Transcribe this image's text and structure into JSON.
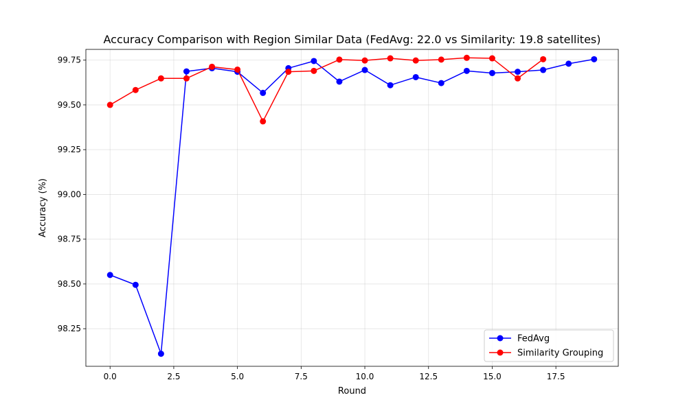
{
  "chart_data": {
    "type": "line",
    "title": "Accuracy Comparison with Region Similar Data (FedAvg: 22.0 vs Similarity: 19.8 satellites)",
    "xlabel": "Round",
    "ylabel": "Accuracy (%)",
    "xlim": [
      -0.95,
      19.95
    ],
    "ylim": [
      98.04,
      99.81
    ],
    "xticks": [
      0.0,
      2.5,
      5.0,
      7.5,
      10.0,
      12.5,
      15.0,
      17.5
    ],
    "xtick_labels": [
      "0.0",
      "2.5",
      "5.0",
      "7.5",
      "10.0",
      "12.5",
      "15.0",
      "17.5"
    ],
    "yticks": [
      98.25,
      98.5,
      98.75,
      99.0,
      99.25,
      99.5,
      99.75
    ],
    "ytick_labels": [
      "98.25",
      "98.50",
      "98.75",
      "99.00",
      "99.25",
      "99.50",
      "99.75"
    ],
    "grid": true,
    "legend_position": "bottom-right",
    "series": [
      {
        "name": "FedAvg",
        "color": "#0000ff",
        "x": [
          0,
          1,
          2,
          3,
          4,
          5,
          6,
          7,
          8,
          9,
          10,
          11,
          12,
          13,
          14,
          15,
          16,
          17,
          18,
          19
        ],
        "values": [
          98.55,
          98.495,
          98.11,
          99.687,
          99.705,
          99.685,
          99.567,
          99.705,
          99.745,
          99.63,
          99.695,
          99.61,
          99.655,
          99.622,
          99.69,
          99.678,
          99.685,
          99.695,
          99.73,
          99.755
        ]
      },
      {
        "name": "Similarity Grouping",
        "color": "#ff0000",
        "x": [
          0,
          1,
          2,
          3,
          4,
          5,
          6,
          7,
          8,
          9,
          10,
          11,
          12,
          13,
          14,
          15,
          16,
          17
        ],
        "values": [
          99.5,
          99.583,
          99.648,
          99.648,
          99.713,
          99.697,
          99.408,
          99.685,
          99.69,
          99.753,
          99.748,
          99.76,
          99.748,
          99.753,
          99.763,
          99.76,
          99.648,
          99.755
        ]
      }
    ]
  }
}
